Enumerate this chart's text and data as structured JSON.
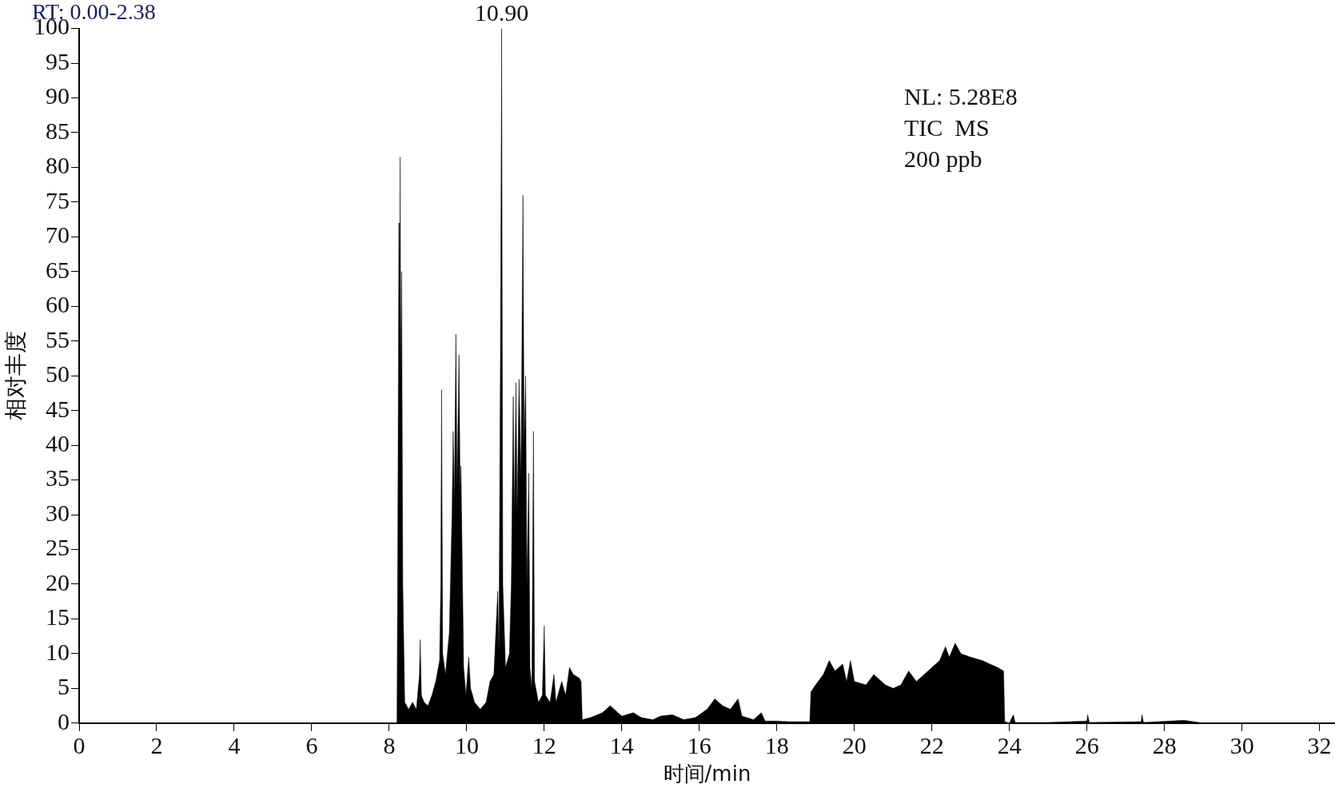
{
  "chart_data": {
    "type": "area",
    "title": "RT: 0.00-2.38",
    "xlabel": "时间/min",
    "ylabel": "相对丰度",
    "annotations": [
      {
        "text": "10.90",
        "x": 10.9,
        "y": 100
      },
      "NL: 5.28E8",
      "TIC  MS",
      "200 ppb"
    ],
    "xlim": [
      0,
      32.4
    ],
    "xticks": [
      0,
      2,
      4,
      6,
      8,
      10,
      12,
      14,
      16,
      18,
      20,
      22,
      24,
      26,
      28,
      30,
      32
    ],
    "ylim": [
      0,
      100
    ],
    "yticks": [
      0,
      5,
      10,
      15,
      20,
      25,
      30,
      35,
      40,
      45,
      50,
      55,
      60,
      65,
      70,
      75,
      80,
      85,
      90,
      95,
      100
    ],
    "grid": false,
    "legend": false,
    "marker": "none",
    "line_style": "solid",
    "series": [
      {
        "color": "#000000",
        "x": [
          0,
          8.2,
          8.22,
          8.25,
          8.27,
          8.28,
          8.3,
          8.32,
          8.35,
          8.4,
          8.5,
          8.6,
          8.7,
          8.78,
          8.8,
          8.83,
          8.9,
          9.0,
          9.1,
          9.2,
          9.3,
          9.33,
          9.35,
          9.38,
          9.45,
          9.55,
          9.62,
          9.65,
          9.68,
          9.72,
          9.75,
          9.8,
          9.83,
          9.85,
          9.88,
          9.92,
          9.98,
          10.05,
          10.1,
          10.2,
          10.35,
          10.5,
          10.6,
          10.7,
          10.8,
          10.83,
          10.87,
          10.9,
          10.93,
          11.0,
          11.1,
          11.15,
          11.2,
          11.23,
          11.27,
          11.3,
          11.35,
          11.4,
          11.45,
          11.48,
          11.52,
          11.55,
          11.6,
          11.63,
          11.68,
          11.72,
          11.75,
          11.85,
          11.95,
          12.0,
          12.03,
          12.15,
          12.25,
          12.3,
          12.45,
          12.55,
          12.65,
          12.75,
          12.9,
          12.95,
          12.98,
          13.2,
          13.5,
          13.7,
          13.9,
          14.0,
          14.3,
          14.5,
          14.8,
          15.0,
          15.3,
          15.6,
          15.9,
          16.2,
          16.4,
          16.6,
          16.8,
          17.0,
          17.1,
          17.4,
          17.6,
          17.7,
          18.0,
          18.3,
          18.85,
          18.88,
          19.0,
          19.2,
          19.35,
          19.5,
          19.7,
          19.8,
          19.9,
          20.0,
          20.3,
          20.5,
          20.8,
          21.0,
          21.2,
          21.4,
          21.6,
          21.8,
          22.0,
          22.2,
          22.35,
          22.45,
          22.6,
          22.75,
          23.0,
          23.3,
          23.5,
          23.7,
          23.85,
          23.88,
          24.0,
          24.1,
          24.15,
          25,
          26,
          26.02,
          26.06,
          27.4,
          27.42,
          27.46,
          28.5,
          29,
          32.4
        ],
        "values": [
          0,
          0,
          25,
          72,
          60,
          81.5,
          50,
          65,
          20,
          3,
          2,
          3,
          2,
          7,
          12,
          4,
          3,
          2.5,
          4,
          6,
          9,
          20,
          48,
          10,
          7,
          13,
          30,
          42,
          32,
          56,
          34,
          53,
          33,
          37,
          25,
          8,
          4,
          9.5,
          5,
          3,
          2,
          3,
          6,
          7,
          19,
          10,
          54,
          100,
          20,
          8,
          10,
          20,
          47,
          30,
          49,
          30,
          49.5,
          35,
          76,
          40,
          50,
          20,
          36,
          8,
          5,
          42,
          6,
          3,
          4,
          14,
          4,
          3,
          7,
          3,
          6,
          4,
          8,
          7,
          6.5,
          6,
          0.5,
          0.8,
          1.5,
          2.5,
          1.5,
          1,
          1.5,
          0.8,
          0.5,
          1,
          1.2,
          0.5,
          0.8,
          2,
          3.5,
          2.5,
          2,
          3.5,
          1,
          0.5,
          1.5,
          0.3,
          0.3,
          0.2,
          0.2,
          4.5,
          5.5,
          7,
          9,
          7.5,
          8.5,
          6,
          9,
          6,
          5.5,
          7,
          5.5,
          5,
          5.5,
          7.5,
          6,
          7,
          8,
          9,
          11,
          9.5,
          11.5,
          10,
          9.5,
          9,
          8.5,
          8,
          7.5,
          0.2,
          0,
          1.2,
          0.1,
          0.1,
          0.3,
          1.2,
          0.1,
          0.2,
          1.2,
          0.1,
          0.4,
          0,
          0
        ]
      }
    ]
  }
}
